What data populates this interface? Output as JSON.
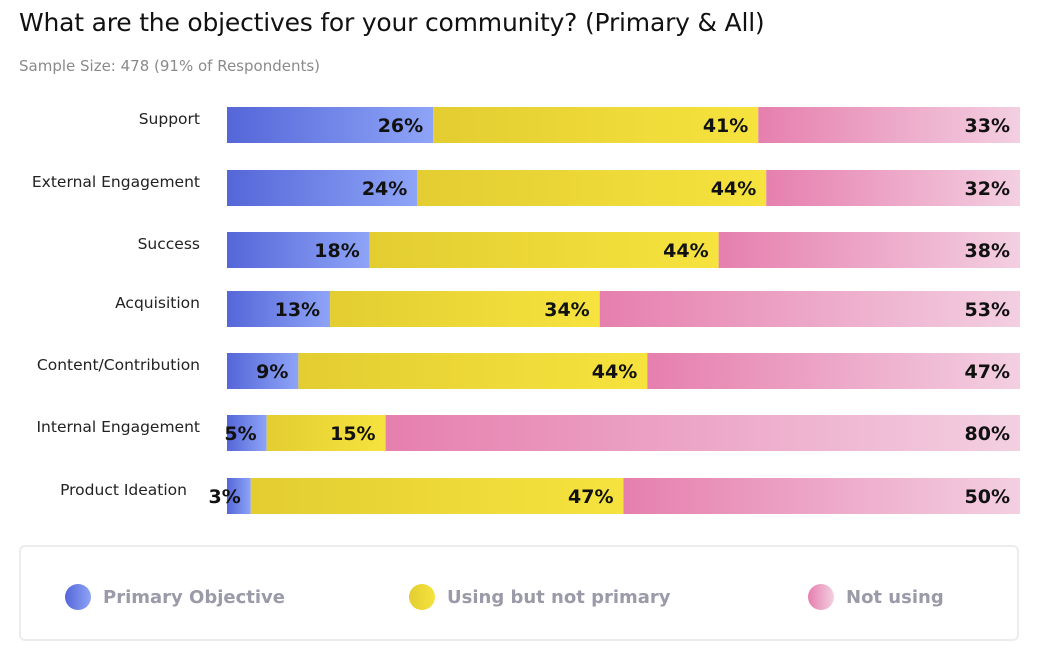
{
  "title": "What are the objectives for your community? (Primary & All)",
  "subtitle": "Sample Size: 478 (91% of Respondents)",
  "legend": {
    "items": [
      {
        "label": "Primary Objective",
        "color": "#5b6fdc"
      },
      {
        "label": "Using but not primary",
        "color": "#eed436"
      },
      {
        "label": "Not using",
        "color": "#e987b3"
      }
    ]
  },
  "chart_data": {
    "type": "bar",
    "orientation": "horizontal",
    "stacked": true,
    "categories": [
      "Support",
      "External Engagement",
      "Success",
      "Acquisition",
      "Content/Contribution",
      "Internal Engagement",
      "Product Ideation"
    ],
    "series": [
      {
        "name": "Primary Objective",
        "values": [
          26,
          24,
          18,
          13,
          9,
          5,
          3
        ],
        "labels": [
          "26%",
          "24%",
          "18%",
          "13%",
          "9%",
          "5%",
          "3%"
        ],
        "color": "#5b6fdc"
      },
      {
        "name": "Using but not primary",
        "values": [
          41,
          44,
          44,
          34,
          44,
          15,
          47
        ],
        "labels": [
          "41%",
          "44%",
          "44%",
          "34%",
          "44%",
          "15%",
          "47%"
        ],
        "color": "#eed436"
      },
      {
        "name": "Not using",
        "values": [
          33,
          32,
          38,
          53,
          47,
          80,
          50
        ],
        "labels": [
          "33%",
          "32%",
          "38%",
          "53%",
          "47%",
          "80%",
          "50%"
        ],
        "color": "#e987b3"
      }
    ],
    "xlim": [
      0,
      100
    ]
  }
}
